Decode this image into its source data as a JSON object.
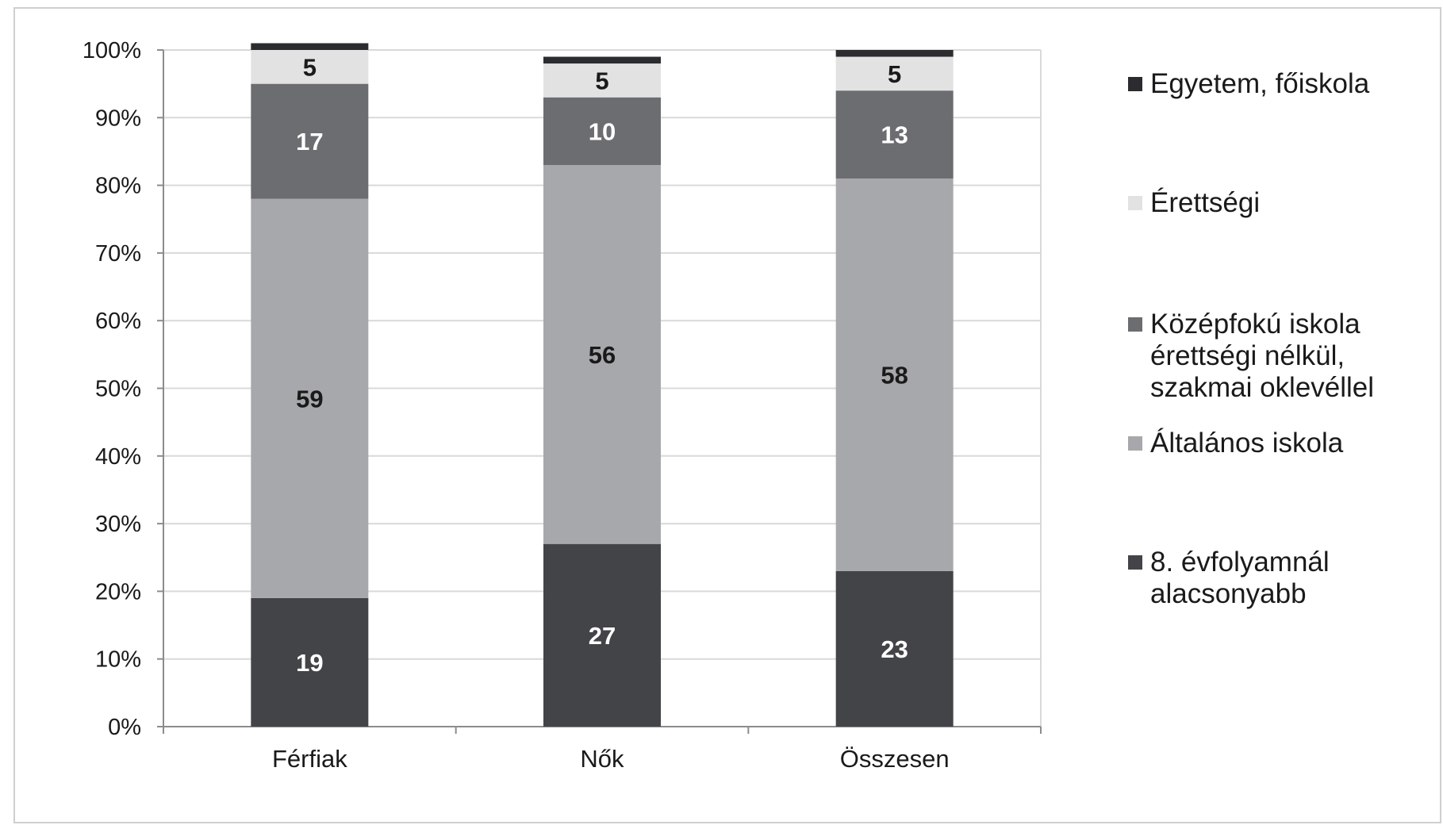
{
  "chart_data": {
    "type": "bar",
    "stacked": true,
    "percent": true,
    "categories": [
      "Férfiak",
      "Nők",
      "Összesen"
    ],
    "y_ticks": [
      "0%",
      "10%",
      "20%",
      "30%",
      "40%",
      "50%",
      "60%",
      "70%",
      "80%",
      "90%",
      "100%"
    ],
    "ylim": [
      0,
      100
    ],
    "grid": true,
    "legend_position": "right",
    "series": [
      {
        "name": "8. évfolyamnál\nalacsonyabb",
        "values": [
          19,
          27,
          23
        ],
        "color": "#434448",
        "label_color": "#ffffff",
        "labels": [
          "19",
          "27",
          "23"
        ]
      },
      {
        "name": "Általános iskola",
        "values": [
          59,
          56,
          58
        ],
        "color": "#a7a8ab",
        "label_color": "#1a1a1a",
        "labels": [
          "59",
          "56",
          "58"
        ]
      },
      {
        "name": "Középfokú iskola\nérettségi nélkül,\nszakmai oklevéllel",
        "values": [
          17,
          10,
          13
        ],
        "color": "#6c6d71",
        "label_color": "#ffffff",
        "labels": [
          "17",
          "10",
          "13"
        ]
      },
      {
        "name": "Érettségi",
        "values": [
          5,
          5,
          5
        ],
        "color": "#e2e2e2",
        "label_color": "#1a1a1a",
        "labels": [
          "5",
          "5",
          "5"
        ]
      },
      {
        "name": "Egyetem, főiskola",
        "values": [
          1,
          1,
          1
        ],
        "color": "#2b2c30",
        "label_color": "#ffffff",
        "labels": [
          "",
          "",
          ""
        ]
      }
    ]
  },
  "legend_order": [
    4,
    3,
    2,
    1,
    0
  ]
}
